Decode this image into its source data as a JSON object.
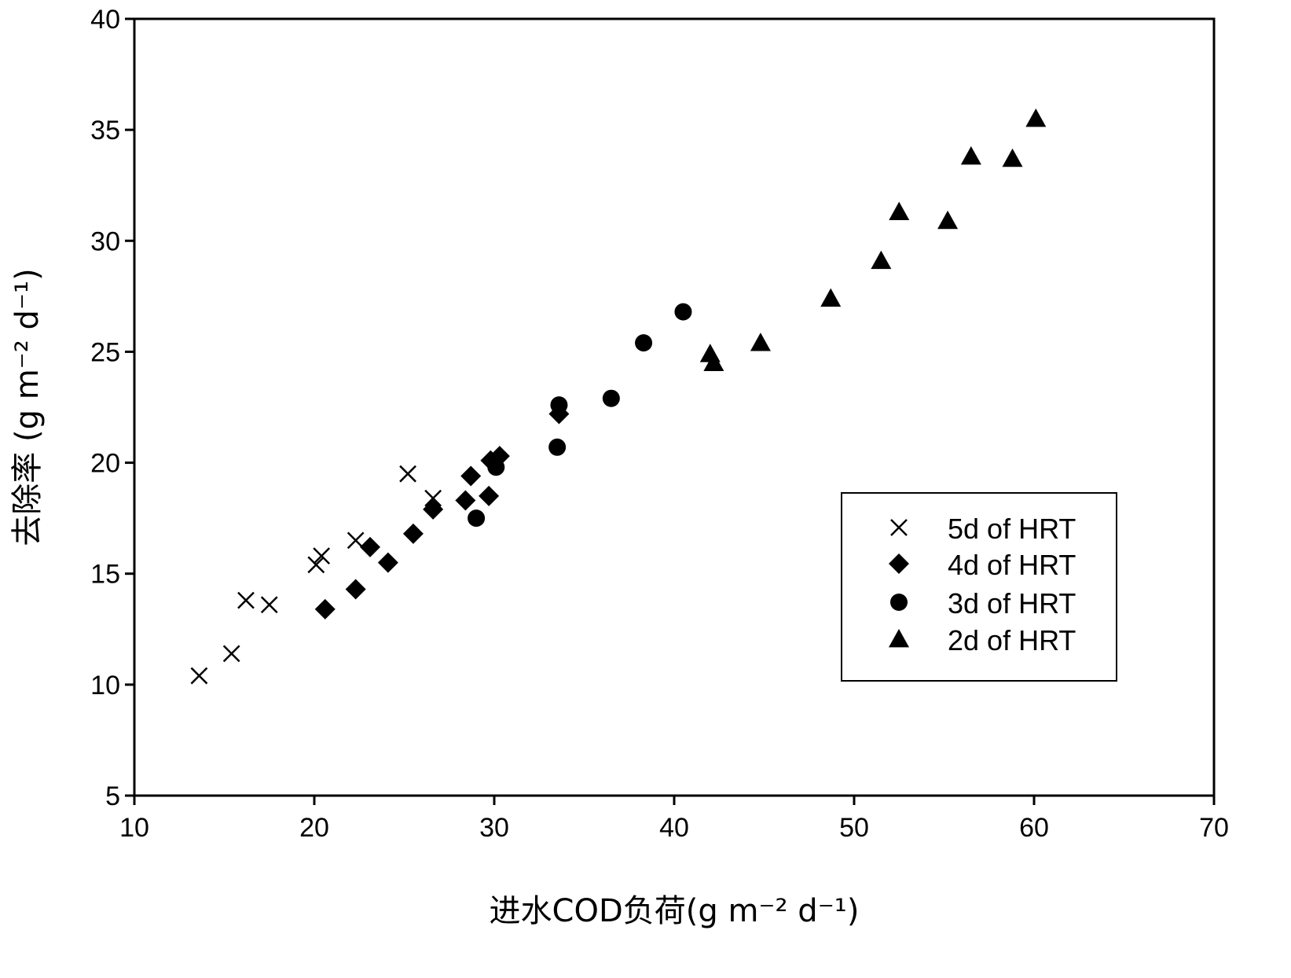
{
  "chart_data": {
    "type": "scatter",
    "xlabel": "进水COD负荷(g m⁻² d⁻¹)",
    "ylabel": "去除率 (g m⁻² d⁻¹)",
    "xlim": [
      10,
      70
    ],
    "ylim": [
      5,
      40
    ],
    "x_ticks": [
      10,
      20,
      30,
      40,
      50,
      60,
      70
    ],
    "y_ticks": [
      5,
      10,
      15,
      20,
      25,
      30,
      35,
      40
    ],
    "grid": false,
    "legend_position": "right",
    "series": [
      {
        "name": "5d of HRT",
        "marker": "x",
        "points": [
          [
            13.6,
            10.4
          ],
          [
            15.4,
            11.4
          ],
          [
            16.2,
            13.8
          ],
          [
            17.5,
            13.6
          ],
          [
            20.1,
            15.4
          ],
          [
            20.4,
            15.8
          ],
          [
            22.3,
            16.5
          ],
          [
            25.2,
            19.5
          ],
          [
            26.6,
            18.4
          ]
        ]
      },
      {
        "name": "4d of HRT",
        "marker": "diamond",
        "points": [
          [
            20.6,
            13.4
          ],
          [
            22.3,
            14.3
          ],
          [
            23.1,
            16.2
          ],
          [
            24.1,
            15.5
          ],
          [
            25.5,
            16.8
          ],
          [
            26.6,
            17.9
          ],
          [
            28.4,
            18.3
          ],
          [
            28.7,
            19.4
          ],
          [
            29.7,
            18.5
          ],
          [
            29.8,
            20.1
          ],
          [
            30.3,
            20.3
          ],
          [
            33.6,
            22.2
          ]
        ]
      },
      {
        "name": "3d of HRT",
        "marker": "circle",
        "points": [
          [
            29.0,
            17.5
          ],
          [
            30.1,
            19.8
          ],
          [
            33.5,
            20.7
          ],
          [
            33.6,
            22.6
          ],
          [
            36.5,
            22.9
          ],
          [
            38.3,
            25.4
          ],
          [
            40.5,
            26.8
          ]
        ]
      },
      {
        "name": "2d of HRT",
        "marker": "triangle",
        "points": [
          [
            42.0,
            24.9
          ],
          [
            42.2,
            24.5
          ],
          [
            44.8,
            25.4
          ],
          [
            48.7,
            27.4
          ],
          [
            51.5,
            29.1
          ],
          [
            52.5,
            31.3
          ],
          [
            55.2,
            30.9
          ],
          [
            56.5,
            33.8
          ],
          [
            58.8,
            33.7
          ],
          [
            60.1,
            35.5
          ]
        ]
      }
    ]
  }
}
